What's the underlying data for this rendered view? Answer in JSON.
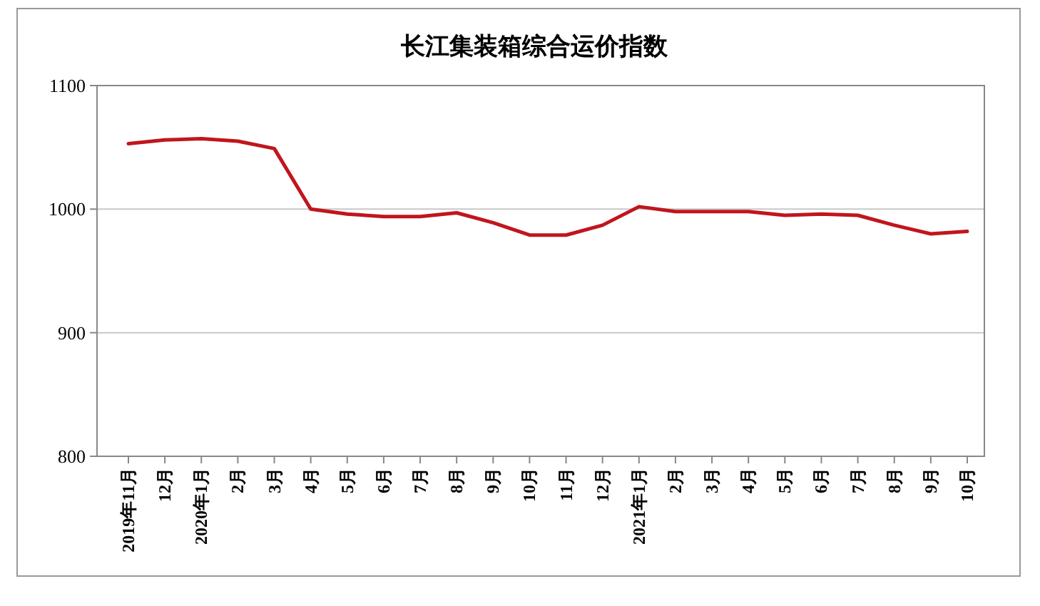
{
  "chart_data": {
    "type": "line",
    "title": "长江集装箱综合运价指数",
    "categories": [
      "2019年11月",
      "12月",
      "2020年1月",
      "2月",
      "3月",
      "4月",
      "5月",
      "6月",
      "7月",
      "8月",
      "9月",
      "10月",
      "11月",
      "12月",
      "2021年1月",
      "2月",
      "3月",
      "4月",
      "5月",
      "6月",
      "7月",
      "8月",
      "9月",
      "10月"
    ],
    "series": [
      {
        "color": "#c0161c",
        "values": [
          1053,
          1056,
          1057,
          1055,
          1049,
          1000,
          996,
          994,
          994,
          997,
          989,
          979,
          979,
          987,
          1002,
          998,
          998,
          998,
          995,
          996,
          995,
          987,
          980,
          982
        ]
      }
    ],
    "ylim": [
      800,
      1100
    ],
    "yticks": [
      800,
      900,
      1000,
      1100
    ],
    "grid": "y",
    "marker": "none",
    "line_style": "solid"
  }
}
